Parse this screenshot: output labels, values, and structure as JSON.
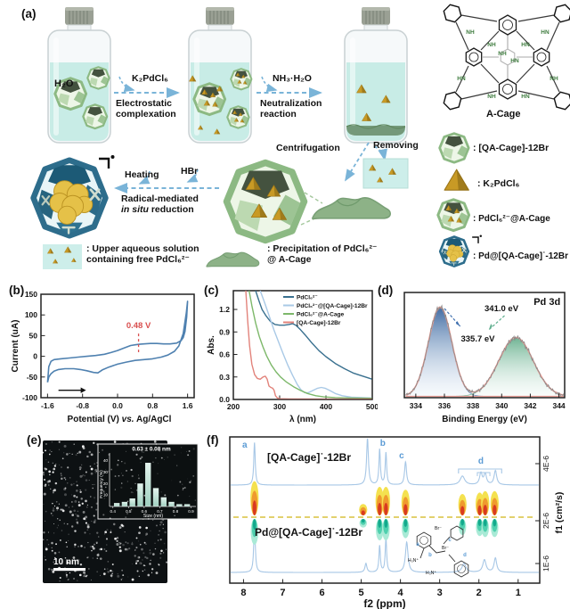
{
  "panel_labels": {
    "a": "(a)",
    "b": "(b)",
    "c": "(c)",
    "d": "(d)",
    "e": "(e)",
    "f": "(f)"
  },
  "panel_a": {
    "h2o": "H₂O",
    "step1_reagent": "K₂PdCl₆",
    "step1_line1": "Electrostatic",
    "step1_line2": "complexation",
    "step2_reagent": "NH₃·H₂O",
    "step2_line1": "Neutralization",
    "step2_line2": "reaction",
    "centrifugation": "Centrifugation",
    "removing": "Removing",
    "heating": "Heating",
    "hbr": "HBr",
    "step3_line1": "Radical-mediated",
    "step3_italic": "in situ",
    "step3_rest": " reduction",
    "acage_label": "A-Cage",
    "acage_nh": [
      "NH",
      "HN",
      "NH",
      "HN",
      "HN",
      "NH",
      "NH",
      "HN",
      "NH",
      "HN"
    ],
    "legend_solution_l1": ": Upper aqueous solution",
    "legend_solution_l2": "containing free PdCl₆²⁻",
    "legend_precip_l1": ": Precipitation of  PdCl₆²⁻",
    "legend_precip_l2": "@ A-Cage",
    "legend_items": [
      ": [QA-Cage]-12Br",
      ": K₂PdCl₆",
      ": PdCl₆²⁻@A-Cage",
      ": Pd@[QA-Cage]˙-12Br"
    ]
  },
  "colors": {
    "arrow_blue": "#7ab4d8",
    "cage_green": "#8cb983",
    "liquid": "#c8ece6",
    "cv_blue": "#4f81b0",
    "annot_red": "#d94f4f",
    "trace_blue": "#a7c7e6",
    "dosy_dash": "#d8c23e",
    "xps_envelope": "#e79a92"
  },
  "chart_data": [
    {
      "id": "b",
      "type": "line",
      "xlabel_parts": [
        "Potential (V) ",
        "vs.",
        " Ag/AgCl"
      ],
      "ylabel": "Current (uA)",
      "xlim": [
        -1.75,
        1.75
      ],
      "ylim": [
        -100,
        150
      ],
      "xticks": [
        -1.6,
        -0.8,
        0.0,
        0.8,
        1.6
      ],
      "yticks": [
        -100,
        -50,
        0,
        50,
        100,
        150
      ],
      "annotation": {
        "label": "0.48 V",
        "x": 0.48,
        "y_top": 55,
        "y_bottom": 10
      },
      "scan_arrow": {
        "x1": -1.35,
        "x2": -0.72,
        "y": -82
      },
      "series": [
        {
          "name": "CV",
          "color": "#4f81b0",
          "points": [
            [
              -1.6,
              -63
            ],
            [
              -1.57,
              -50
            ],
            [
              -1.52,
              -42
            ],
            [
              -1.45,
              -36
            ],
            [
              -1.35,
              -32
            ],
            [
              -1.2,
              -30
            ],
            [
              -1.0,
              -30
            ],
            [
              -0.85,
              -32
            ],
            [
              -0.7,
              -35
            ],
            [
              -0.55,
              -39
            ],
            [
              -0.45,
              -40
            ],
            [
              -0.35,
              -33
            ],
            [
              -0.2,
              -26
            ],
            [
              0,
              -19
            ],
            [
              0.2,
              -14
            ],
            [
              0.4,
              -10
            ],
            [
              0.6,
              -8
            ],
            [
              0.8,
              -6
            ],
            [
              1.0,
              -2
            ],
            [
              1.15,
              3
            ],
            [
              1.3,
              12
            ],
            [
              1.4,
              25
            ],
            [
              1.5,
              55
            ],
            [
              1.57,
              105
            ],
            [
              1.6,
              133
            ],
            [
              1.58,
              95
            ],
            [
              1.54,
              60
            ],
            [
              1.5,
              45
            ],
            [
              1.45,
              38
            ],
            [
              1.35,
              32
            ],
            [
              1.2,
              30
            ],
            [
              1.05,
              30
            ],
            [
              0.9,
              31
            ],
            [
              0.75,
              31
            ],
            [
              0.6,
              30
            ],
            [
              0.5,
              29
            ],
            [
              0.42,
              28
            ],
            [
              0.3,
              26
            ],
            [
              0.15,
              20
            ],
            [
              0,
              14
            ],
            [
              -0.15,
              9
            ],
            [
              -0.3,
              5
            ],
            [
              -0.5,
              2
            ],
            [
              -0.7,
              0
            ],
            [
              -0.9,
              -2
            ],
            [
              -1.1,
              -4
            ],
            [
              -1.3,
              -6
            ],
            [
              -1.45,
              -8
            ],
            [
              -1.52,
              -12
            ],
            [
              -1.57,
              -25
            ],
            [
              -1.6,
              -63
            ]
          ]
        }
      ]
    },
    {
      "id": "c",
      "type": "line",
      "xlabel": "λ (nm)",
      "ylabel": "Abs.",
      "xlim": [
        200,
        500
      ],
      "ylim": [
        0,
        1.45
      ],
      "xticks": [
        200,
        300,
        400,
        500
      ],
      "yticks": [
        0.0,
        0.3,
        0.6,
        0.9,
        1.2
      ],
      "legend_pos": "top-right",
      "series": [
        {
          "name": "PdCl₆²⁻",
          "color": "#39708f",
          "points": [
            [
              248,
              1.45
            ],
            [
              255,
              1.32
            ],
            [
              262,
              1.2
            ],
            [
              270,
              1.12
            ],
            [
              280,
              1.04
            ],
            [
              290,
              1.0
            ],
            [
              300,
              0.99
            ],
            [
              310,
              0.99
            ],
            [
              320,
              1.0
            ],
            [
              328,
              1.01
            ],
            [
              335,
              0.99
            ],
            [
              345,
              0.93
            ],
            [
              355,
              0.86
            ],
            [
              370,
              0.75
            ],
            [
              385,
              0.65
            ],
            [
              400,
              0.57
            ],
            [
              420,
              0.48
            ],
            [
              440,
              0.41
            ],
            [
              460,
              0.35
            ],
            [
              480,
              0.31
            ],
            [
              500,
              0.27
            ]
          ]
        },
        {
          "name": "PdCl₆²⁻@[QA-Cage]-12Br",
          "color": "#a9c9e6",
          "points": [
            [
              258,
              1.45
            ],
            [
              268,
              1.28
            ],
            [
              278,
              1.1
            ],
            [
              288,
              0.92
            ],
            [
              298,
              0.76
            ],
            [
              308,
              0.6
            ],
            [
              318,
              0.45
            ],
            [
              328,
              0.32
            ],
            [
              338,
              0.2
            ],
            [
              346,
              0.13
            ],
            [
              354,
              0.09
            ],
            [
              362,
              0.09
            ],
            [
              372,
              0.12
            ],
            [
              382,
              0.15
            ],
            [
              390,
              0.16
            ],
            [
              398,
              0.15
            ],
            [
              408,
              0.12
            ],
            [
              420,
              0.08
            ],
            [
              435,
              0.05
            ],
            [
              455,
              0.03
            ],
            [
              500,
              0.02
            ]
          ]
        },
        {
          "name": "PdCl₆²⁻@A-Cage",
          "color": "#7db86a",
          "points": [
            [
              234,
              1.45
            ],
            [
              240,
              1.25
            ],
            [
              248,
              1.02
            ],
            [
              256,
              0.84
            ],
            [
              264,
              0.7
            ],
            [
              272,
              0.58
            ],
            [
              282,
              0.46
            ],
            [
              292,
              0.37
            ],
            [
              302,
              0.3
            ],
            [
              315,
              0.23
            ],
            [
              330,
              0.17
            ],
            [
              345,
              0.12
            ],
            [
              360,
              0.08
            ],
            [
              378,
              0.05
            ],
            [
              395,
              0.035
            ],
            [
              420,
              0.025
            ],
            [
              450,
              0.02
            ],
            [
              500,
              0.015
            ]
          ]
        },
        {
          "name": "[QA-Cage]-12Br",
          "color": "#e2837b",
          "points": [
            [
              227,
              1.45
            ],
            [
              231,
              1.05
            ],
            [
              235,
              0.72
            ],
            [
              240,
              0.47
            ],
            [
              246,
              0.33
            ],
            [
              252,
              0.28
            ],
            [
              258,
              0.27
            ],
            [
              264,
              0.3
            ],
            [
              269,
              0.31
            ],
            [
              273,
              0.27
            ],
            [
              277,
              0.18
            ],
            [
              281,
              0.16
            ],
            [
              285,
              0.15
            ],
            [
              288,
              0.12
            ],
            [
              291,
              0.05
            ],
            [
              295,
              0.02
            ],
            [
              300,
              0.01
            ],
            [
              320,
              0.007
            ],
            [
              400,
              0.005
            ],
            [
              500,
              0.005
            ]
          ]
        }
      ]
    },
    {
      "id": "d",
      "type": "area",
      "title": "Pd 3d",
      "xlabel": "Binding Energy (eV)",
      "xlim": [
        333.2,
        344.4
      ],
      "xticks": [
        334,
        336,
        338,
        340,
        342,
        344
      ],
      "peaks": [
        {
          "label": "335.7 eV",
          "center": 335.7,
          "amp": 1.0,
          "sigma": 0.82,
          "fill": "blue"
        },
        {
          "label": "341.0 eV",
          "center": 341.0,
          "amp": 0.66,
          "sigma": 1.2,
          "fill": "green"
        }
      ],
      "envelope_color": "#e79a92",
      "raw_color": "#8a8a8a"
    },
    {
      "id": "e_hist",
      "type": "bar",
      "title": "0.63 ± 0.08 nm",
      "xlabel": "Size (nm)",
      "ylabel": "Frequency (%)",
      "xticks": [
        0.4,
        0.5,
        0.6,
        0.7,
        0.8,
        0.9
      ],
      "yticks": [
        10,
        20,
        30,
        40
      ],
      "ylim": [
        0,
        45
      ],
      "centers": [
        0.425,
        0.475,
        0.525,
        0.575,
        0.625,
        0.675,
        0.725,
        0.775,
        0.825,
        0.875
      ],
      "values": [
        3,
        4,
        7,
        20,
        38,
        16,
        8,
        4,
        2,
        2
      ],
      "scalebar_label": "10 nm"
    },
    {
      "id": "f",
      "type": "line",
      "xlabel": "f2 (ppm)",
      "ylabel": "f1 (cm²/s)",
      "xlim": [
        8.35,
        0.45
      ],
      "xticks": [
        8,
        7,
        6,
        5,
        4,
        3,
        2,
        1
      ],
      "yticklabels": [
        "4E-6",
        "2E-6",
        "1E-6"
      ],
      "sample_top": "[QA-Cage]˙-12Br",
      "sample_bottom": "Pd@[QA-Cage]˙-12Br",
      "trace_color": "#a7c7e6",
      "top_peaks": [
        [
          7.72,
          48,
          0.022
        ],
        [
          4.84,
          52,
          0.028
        ],
        [
          4.53,
          40,
          0.022
        ],
        [
          4.37,
          36,
          0.022
        ],
        [
          3.87,
          26,
          0.03
        ],
        [
          2.42,
          10,
          0.07
        ],
        [
          1.95,
          13,
          0.04
        ],
        [
          1.84,
          12,
          0.04
        ],
        [
          1.58,
          16,
          0.04
        ]
      ],
      "bottom_peaks": [
        [
          7.72,
          60,
          0.022
        ],
        [
          4.88,
          10,
          0.03
        ],
        [
          4.53,
          30,
          0.022
        ],
        [
          4.37,
          38,
          0.022
        ],
        [
          3.84,
          34,
          0.04
        ],
        [
          2.38,
          10,
          0.06
        ],
        [
          1.86,
          14,
          0.05
        ],
        [
          1.58,
          16,
          0.04
        ]
      ],
      "dosy_spots": [
        [
          7.72,
          1.2
        ],
        [
          4.95,
          0.4
        ],
        [
          4.53,
          1.0
        ],
        [
          4.37,
          1.0
        ],
        [
          3.87,
          0.9
        ],
        [
          2.42,
          0.75
        ],
        [
          1.98,
          0.8
        ],
        [
          1.84,
          0.85
        ],
        [
          1.6,
          0.85
        ]
      ],
      "peak_letters": [
        [
          "a",
          7.97,
          22
        ],
        [
          "b",
          4.45,
          20
        ],
        [
          "c",
          3.97,
          34
        ],
        [
          "d",
          1.95,
          40
        ]
      ],
      "bracket": {
        "x1": 2.52,
        "x2": 1.42
      },
      "structure_labels": [
        "Br⁻",
        "H₃N⁺",
        "Br⁻",
        "H₃N⁺"
      ],
      "structure_letters": [
        "a",
        "b",
        "c",
        "d"
      ]
    }
  ]
}
